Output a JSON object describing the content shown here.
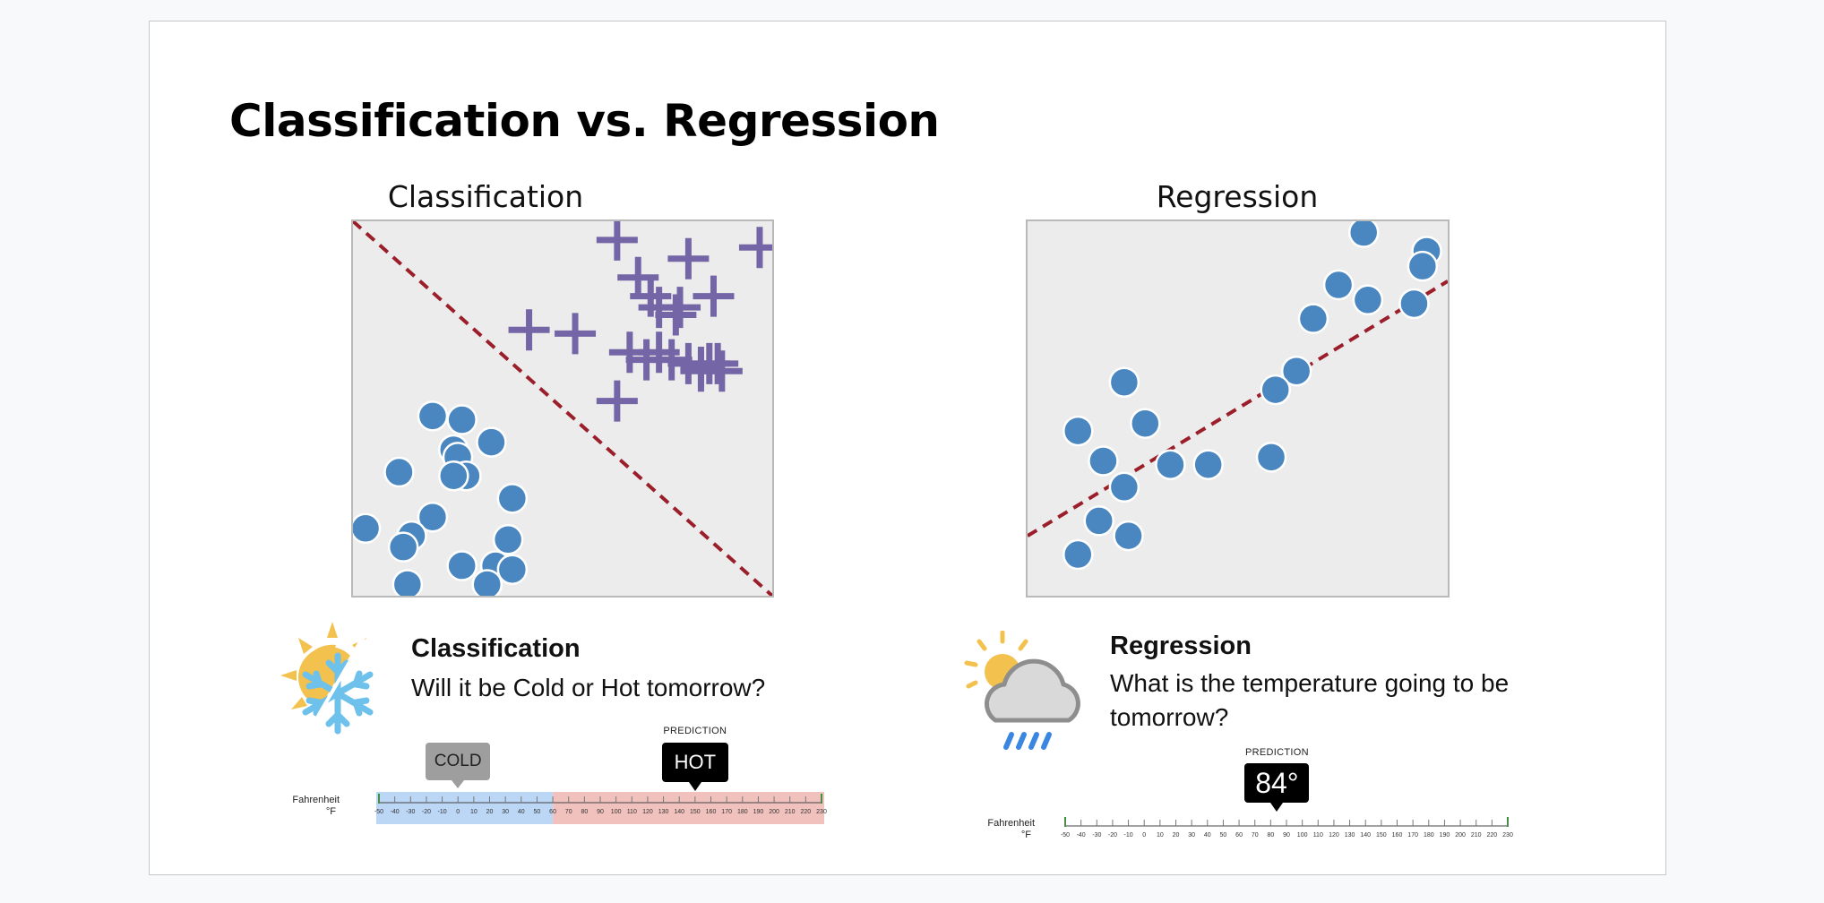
{
  "slide": {
    "title": "Classification vs. Regression"
  },
  "classification_plot": {
    "heading": "Classification"
  },
  "regression_plot": {
    "heading": "Regression"
  },
  "classification_card": {
    "title": "Classification",
    "question": "Will it be Cold or Hot tomorrow?",
    "icon": "sun-snowflake-icon",
    "scale": {
      "unit_label": "Fahrenheit",
      "unit_symbol": "°F",
      "ticks": [
        -50,
        -40,
        -30,
        -20,
        -10,
        0,
        10,
        20,
        30,
        40,
        50,
        60,
        70,
        80,
        90,
        100,
        110,
        120,
        130,
        140,
        150,
        160,
        170,
        180,
        190,
        200,
        210,
        220,
        230
      ],
      "range": [
        -50,
        230
      ],
      "cold_range": [
        -50,
        60
      ],
      "hot_range": [
        60,
        230
      ],
      "cold_color": "#bcd6f5",
      "hot_color": "#f1c2bd",
      "cold_tag": {
        "label": "COLD",
        "value": 0
      },
      "hot_tag": {
        "caption": "PREDICTION",
        "label": "HOT",
        "value": 150
      }
    }
  },
  "regression_card": {
    "title": "Regression",
    "question": "What is the temperature going to be tomorrow?",
    "icon": "sun-cloud-rain-icon",
    "scale": {
      "unit_label": "Fahrenheit",
      "unit_symbol": "°F",
      "ticks": [
        -50,
        -40,
        -30,
        -20,
        -10,
        0,
        10,
        20,
        30,
        40,
        50,
        60,
        70,
        80,
        90,
        100,
        110,
        120,
        130,
        140,
        150,
        160,
        170,
        180,
        190,
        200,
        210,
        220,
        230
      ],
      "range": [
        -50,
        230
      ],
      "prediction": {
        "caption": "PREDICTION",
        "label": "84°",
        "value": 84
      }
    }
  },
  "chart_data": [
    {
      "type": "scatter",
      "title": "Classification",
      "xlabel": "",
      "ylabel": "",
      "xlim": [
        0,
        100
      ],
      "ylim": [
        0,
        100
      ],
      "grid": false,
      "colors": {
        "circle": "#4a86bf",
        "plus": "#7466a6",
        "boundary": "#9b1f2a",
        "background": "#ececec"
      },
      "series": [
        {
          "marker": "circle",
          "points": [
            [
              19,
              48
            ],
            [
              26,
              47
            ],
            [
              33,
              41
            ],
            [
              11,
              33
            ],
            [
              24,
              39
            ],
            [
              25,
              37
            ],
            [
              27,
              32
            ],
            [
              24,
              32
            ],
            [
              38,
              26
            ],
            [
              3,
              18
            ],
            [
              19,
              21
            ],
            [
              14,
              16
            ],
            [
              12,
              13
            ],
            [
              37,
              15
            ],
            [
              26,
              8
            ],
            [
              34,
              8
            ],
            [
              38,
              7
            ],
            [
              13,
              3
            ],
            [
              32,
              3
            ]
          ]
        },
        {
          "marker": "plus",
          "points": [
            [
              63,
              95
            ],
            [
              80,
              90
            ],
            [
              68,
              85
            ],
            [
              71,
              80
            ],
            [
              86,
              80
            ],
            [
              73,
              77
            ],
            [
              78,
              77
            ],
            [
              77,
              75
            ],
            [
              42,
              71
            ],
            [
              53,
              70
            ],
            [
              66,
              65
            ],
            [
              73,
              65
            ],
            [
              70,
              63
            ],
            [
              76,
              63
            ],
            [
              80,
              62
            ],
            [
              83,
              61
            ],
            [
              88,
              60
            ],
            [
              85,
              62
            ],
            [
              83,
              60
            ],
            [
              87,
              62
            ],
            [
              63,
              52
            ],
            [
              97,
              93
            ]
          ]
        }
      ],
      "boundary": {
        "style": "dashed",
        "points": [
          [
            0,
            100
          ],
          [
            100,
            0
          ]
        ]
      }
    },
    {
      "type": "scatter",
      "title": "Regression",
      "xlabel": "",
      "ylabel": "",
      "xlim": [
        0,
        100
      ],
      "ylim": [
        0,
        100
      ],
      "grid": false,
      "colors": {
        "circle": "#4a86bf",
        "trend": "#9b1f2a",
        "background": "#ececec"
      },
      "series": [
        {
          "marker": "circle",
          "points": [
            [
              80,
              97
            ],
            [
              95,
              92
            ],
            [
              94,
              88
            ],
            [
              74,
              83
            ],
            [
              81,
              79
            ],
            [
              92,
              78
            ],
            [
              68,
              74
            ],
            [
              64,
              60
            ],
            [
              59,
              55
            ],
            [
              23,
              57
            ],
            [
              28,
              46
            ],
            [
              12,
              44
            ],
            [
              18,
              36
            ],
            [
              34,
              35
            ],
            [
              43,
              35
            ],
            [
              58,
              37
            ],
            [
              23,
              29
            ],
            [
              17,
              20
            ],
            [
              24,
              16
            ],
            [
              12,
              11
            ]
          ]
        }
      ],
      "trendline": {
        "style": "dashed",
        "points": [
          [
            0,
            16
          ],
          [
            100,
            84
          ]
        ]
      }
    }
  ]
}
